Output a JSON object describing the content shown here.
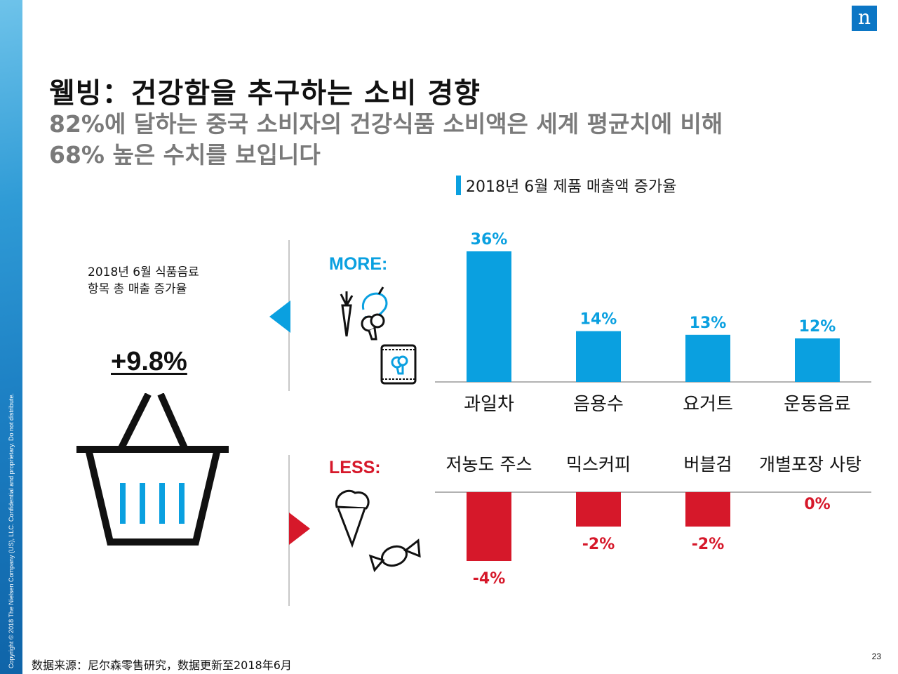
{
  "header": {
    "title": "웰빙：건강함을 추구하는 소비 경향",
    "subtitle_line1": "82%에 달하는 중국 소비자의 건강식품 소비액은 세계 평균치에 비해",
    "subtitle_line2": "68% 높은 수치를 보입니다"
  },
  "logo": {
    "letter": "n"
  },
  "sidebar": {
    "copyright": "Copyright © 2018 The Nielsen Company (US), LLC. Confidential and proprietary. Do not distribute."
  },
  "summary": {
    "label_line1": "2018년 6월 식품음료",
    "label_line2": "항목 총 매출 증가율",
    "value": "+9.8%"
  },
  "sections": {
    "more_label": "MORE:",
    "less_label": "LESS:"
  },
  "colors": {
    "more": "#0aa0e0",
    "less": "#d6182a",
    "brand": "#0b76c5"
  },
  "chart_data": [
    {
      "type": "bar",
      "title": "2018년 6월 제품 매출액 증가율",
      "categories": [
        "과일차",
        "음용수",
        "요거트",
        "운동음료"
      ],
      "values": [
        36,
        14,
        13,
        12
      ],
      "data_labels": [
        "36%",
        "14%",
        "13%",
        "12%"
      ],
      "unit": "%",
      "ylim": [
        0,
        36
      ],
      "color": "#0aa0e0"
    },
    {
      "type": "bar",
      "categories": [
        "저농도 주스",
        "믹스커피",
        "버블검",
        "개별포장 사탕"
      ],
      "values": [
        -4,
        -2,
        -2,
        0
      ],
      "data_labels": [
        "-4%",
        "-2%",
        "-2%",
        "0%"
      ],
      "unit": "%",
      "ylim": [
        -4,
        0
      ],
      "color": "#d6182a"
    }
  ],
  "footer": {
    "source": "数据来源：尼尔森零售研究，数据更新至2018年6月",
    "page_number": "23"
  }
}
